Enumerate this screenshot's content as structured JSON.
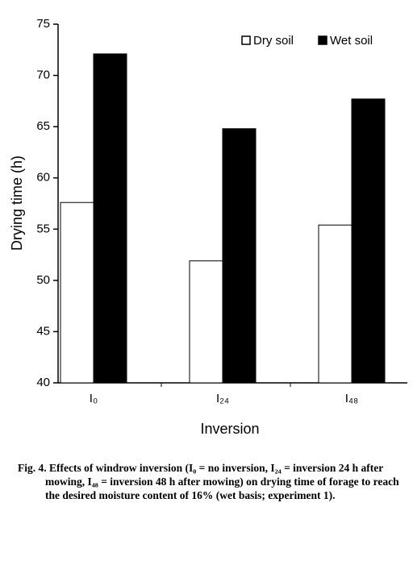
{
  "chart_data": {
    "type": "bar",
    "categories": [
      "I₀",
      "I₂₄",
      "I₄₈"
    ],
    "series": [
      {
        "name": "Dry soil",
        "color": "#ffffff",
        "values": [
          57.6,
          51.9,
          55.4
        ]
      },
      {
        "name": "Wet soil",
        "color": "#000000",
        "values": [
          72.1,
          64.8,
          67.7
        ]
      }
    ],
    "ylim": [
      40,
      75
    ],
    "yticks": [
      40,
      45,
      50,
      55,
      60,
      65,
      70,
      75
    ],
    "y_label": "Drying time (h)",
    "x_label": "Inversion",
    "legend": "top-right",
    "caption": "Fig. 4. Effects of windrow inversion (I₀ = no inversion, I₂₄ = inversion 24 h after mowing, I₄₈ = inversion 48 h after mowing) on drying time of forage to reach the desired moisture content of 16% (wet basis; experiment 1)."
  }
}
